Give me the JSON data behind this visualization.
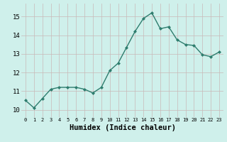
{
  "x": [
    0,
    1,
    2,
    3,
    4,
    5,
    6,
    7,
    8,
    9,
    10,
    11,
    12,
    13,
    14,
    15,
    16,
    17,
    18,
    19,
    20,
    21,
    22,
    23
  ],
  "y": [
    10.5,
    10.1,
    10.6,
    11.1,
    11.2,
    11.2,
    11.2,
    11.1,
    10.9,
    11.2,
    12.1,
    12.5,
    13.35,
    14.2,
    14.9,
    15.2,
    14.35,
    14.45,
    13.75,
    13.5,
    13.45,
    12.95,
    12.85,
    13.1
  ],
  "line_color": "#2e7d6e",
  "marker": "D",
  "marker_size": 2.0,
  "line_width": 1.0,
  "bg_color": "#cff0eb",
  "grid_color": "#c8b8b8",
  "xlabel": "Humidex (Indice chaleur)",
  "xlabel_fontsize": 7.5,
  "ytick_labels": [
    "10",
    "11",
    "12",
    "13",
    "14",
    "15"
  ],
  "ylabel_ticks": [
    10,
    11,
    12,
    13,
    14,
    15
  ],
  "xlim": [
    -0.5,
    23.5
  ],
  "ylim": [
    9.6,
    15.7
  ],
  "xtick_labels": [
    "0",
    "1",
    "2",
    "3",
    "4",
    "5",
    "6",
    "7",
    "8",
    "9",
    "10",
    "11",
    "12",
    "13",
    "14",
    "15",
    "16",
    "17",
    "18",
    "19",
    "20",
    "21",
    "22",
    "23"
  ]
}
